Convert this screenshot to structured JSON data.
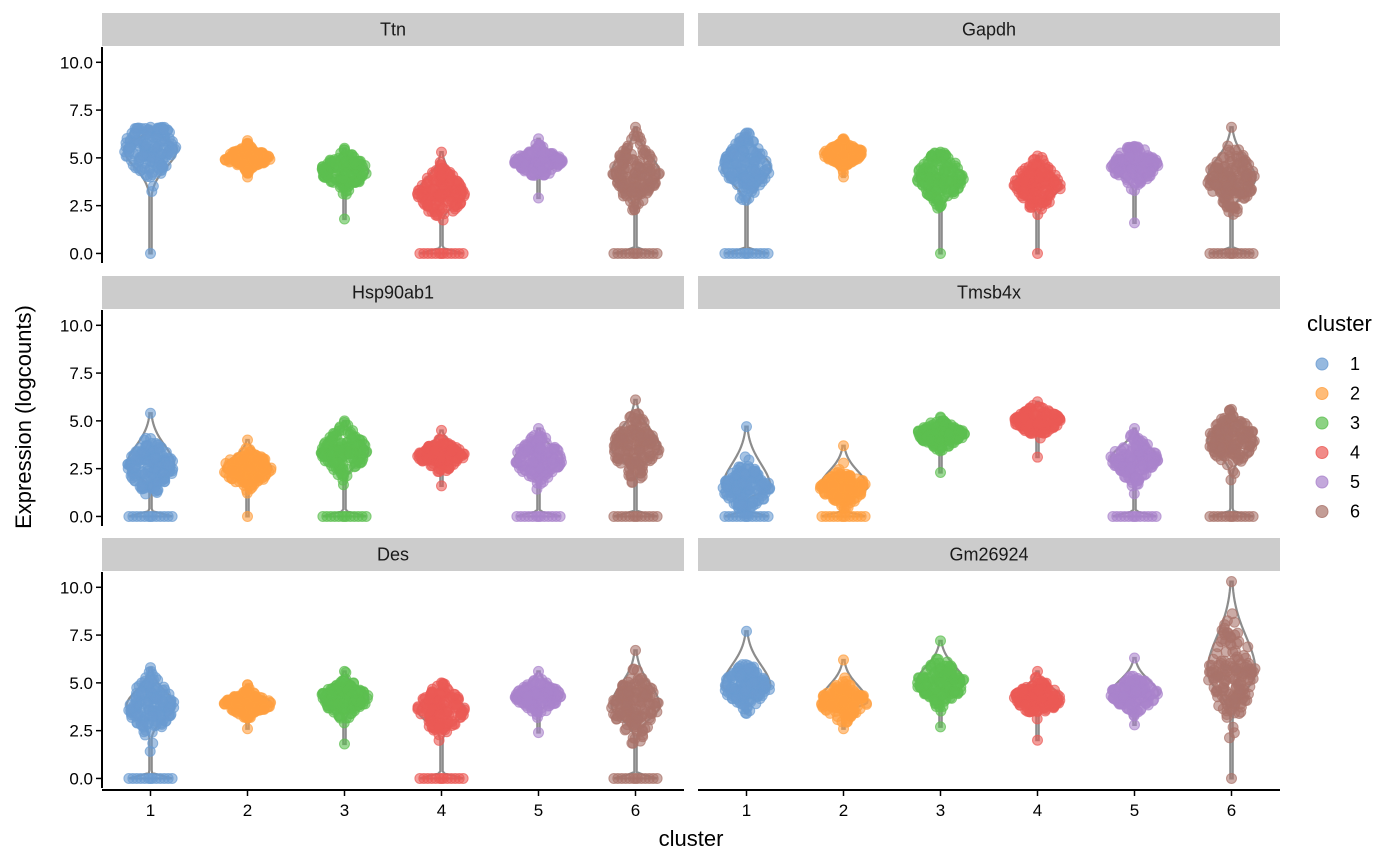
{
  "chart_data": {
    "type": "scatter",
    "subtype": "faceted violin + beeswarm",
    "xlabel": "cluster",
    "ylabel": "Expression (logcounts)",
    "ylim": [
      0,
      10.5
    ],
    "y_ticks": [
      "0.0",
      "2.5",
      "5.0",
      "7.5",
      "10.0"
    ],
    "categories": [
      "1",
      "2",
      "3",
      "4",
      "5",
      "6"
    ],
    "legend": {
      "title": "cluster",
      "position": "right",
      "entries": [
        {
          "label": "1",
          "color": "#6a9bd1"
        },
        {
          "label": "2",
          "color": "#ff9f3f"
        },
        {
          "label": "3",
          "color": "#5cbf50"
        },
        {
          "label": "4",
          "color": "#eb5a55"
        },
        {
          "label": "5",
          "color": "#aa83cc"
        },
        {
          "label": "6",
          "color": "#a9736a"
        }
      ]
    },
    "panels": [
      {
        "gene": "Ttn",
        "median": [
          5.5,
          5.0,
          4.3,
          3.1,
          4.8,
          4.2
        ],
        "min": [
          0.0,
          4.0,
          1.8,
          0.0,
          2.9,
          0.0
        ],
        "max": [
          6.6,
          5.9,
          5.5,
          5.3,
          6.0,
          6.6
        ],
        "width": [
          0.5,
          0.45,
          0.45,
          0.45,
          0.45,
          0.45
        ],
        "zeros": [
          false,
          false,
          false,
          true,
          false,
          true
        ]
      },
      {
        "gene": "Gapdh",
        "median": [
          4.5,
          5.2,
          4.0,
          3.6,
          4.6,
          3.9
        ],
        "min": [
          0.0,
          4.0,
          0.0,
          0.0,
          1.6,
          0.0
        ],
        "max": [
          6.3,
          6.0,
          5.3,
          5.1,
          5.6,
          6.6
        ],
        "width": [
          0.45,
          0.4,
          0.45,
          0.45,
          0.45,
          0.45
        ],
        "zeros": [
          true,
          false,
          false,
          false,
          false,
          true
        ]
      },
      {
        "gene": "Hsp90ab1",
        "median": [
          2.6,
          2.5,
          3.4,
          3.2,
          3.0,
          3.6
        ],
        "min": [
          0.0,
          0.0,
          0.0,
          1.6,
          0.0,
          0.0
        ],
        "max": [
          5.4,
          4.0,
          5.0,
          4.5,
          4.6,
          6.1
        ],
        "width": [
          0.45,
          0.45,
          0.45,
          0.45,
          0.45,
          0.45
        ],
        "zeros": [
          true,
          false,
          true,
          false,
          true,
          true
        ]
      },
      {
        "gene": "Tmsb4x",
        "median": [
          1.5,
          1.5,
          4.3,
          5.0,
          3.0,
          4.0
        ],
        "min": [
          0.0,
          0.0,
          2.3,
          3.1,
          0.0,
          0.0
        ],
        "max": [
          4.7,
          3.7,
          5.2,
          6.0,
          4.6,
          5.6
        ],
        "width": [
          0.45,
          0.45,
          0.45,
          0.45,
          0.45,
          0.45
        ],
        "zeros": [
          true,
          true,
          false,
          false,
          true,
          true
        ]
      },
      {
        "gene": "Des",
        "median": [
          3.8,
          3.9,
          4.2,
          3.6,
          4.3,
          3.8
        ],
        "min": [
          0.0,
          2.6,
          1.8,
          0.0,
          2.4,
          0.0
        ],
        "max": [
          5.8,
          4.9,
          5.6,
          5.0,
          5.6,
          6.7
        ],
        "width": [
          0.45,
          0.45,
          0.45,
          0.45,
          0.45,
          0.45
        ],
        "zeros": [
          true,
          false,
          false,
          true,
          false,
          true
        ]
      },
      {
        "gene": "Gm26924",
        "median": [
          4.8,
          4.0,
          5.0,
          4.2,
          4.4,
          5.6
        ],
        "min": [
          3.4,
          2.6,
          2.7,
          2.0,
          2.8,
          0.0
        ],
        "max": [
          7.7,
          6.2,
          7.2,
          5.6,
          6.3,
          10.3
        ],
        "width": [
          0.45,
          0.45,
          0.45,
          0.45,
          0.45,
          0.45
        ],
        "zeros": [
          false,
          false,
          false,
          false,
          false,
          false
        ]
      }
    ]
  }
}
